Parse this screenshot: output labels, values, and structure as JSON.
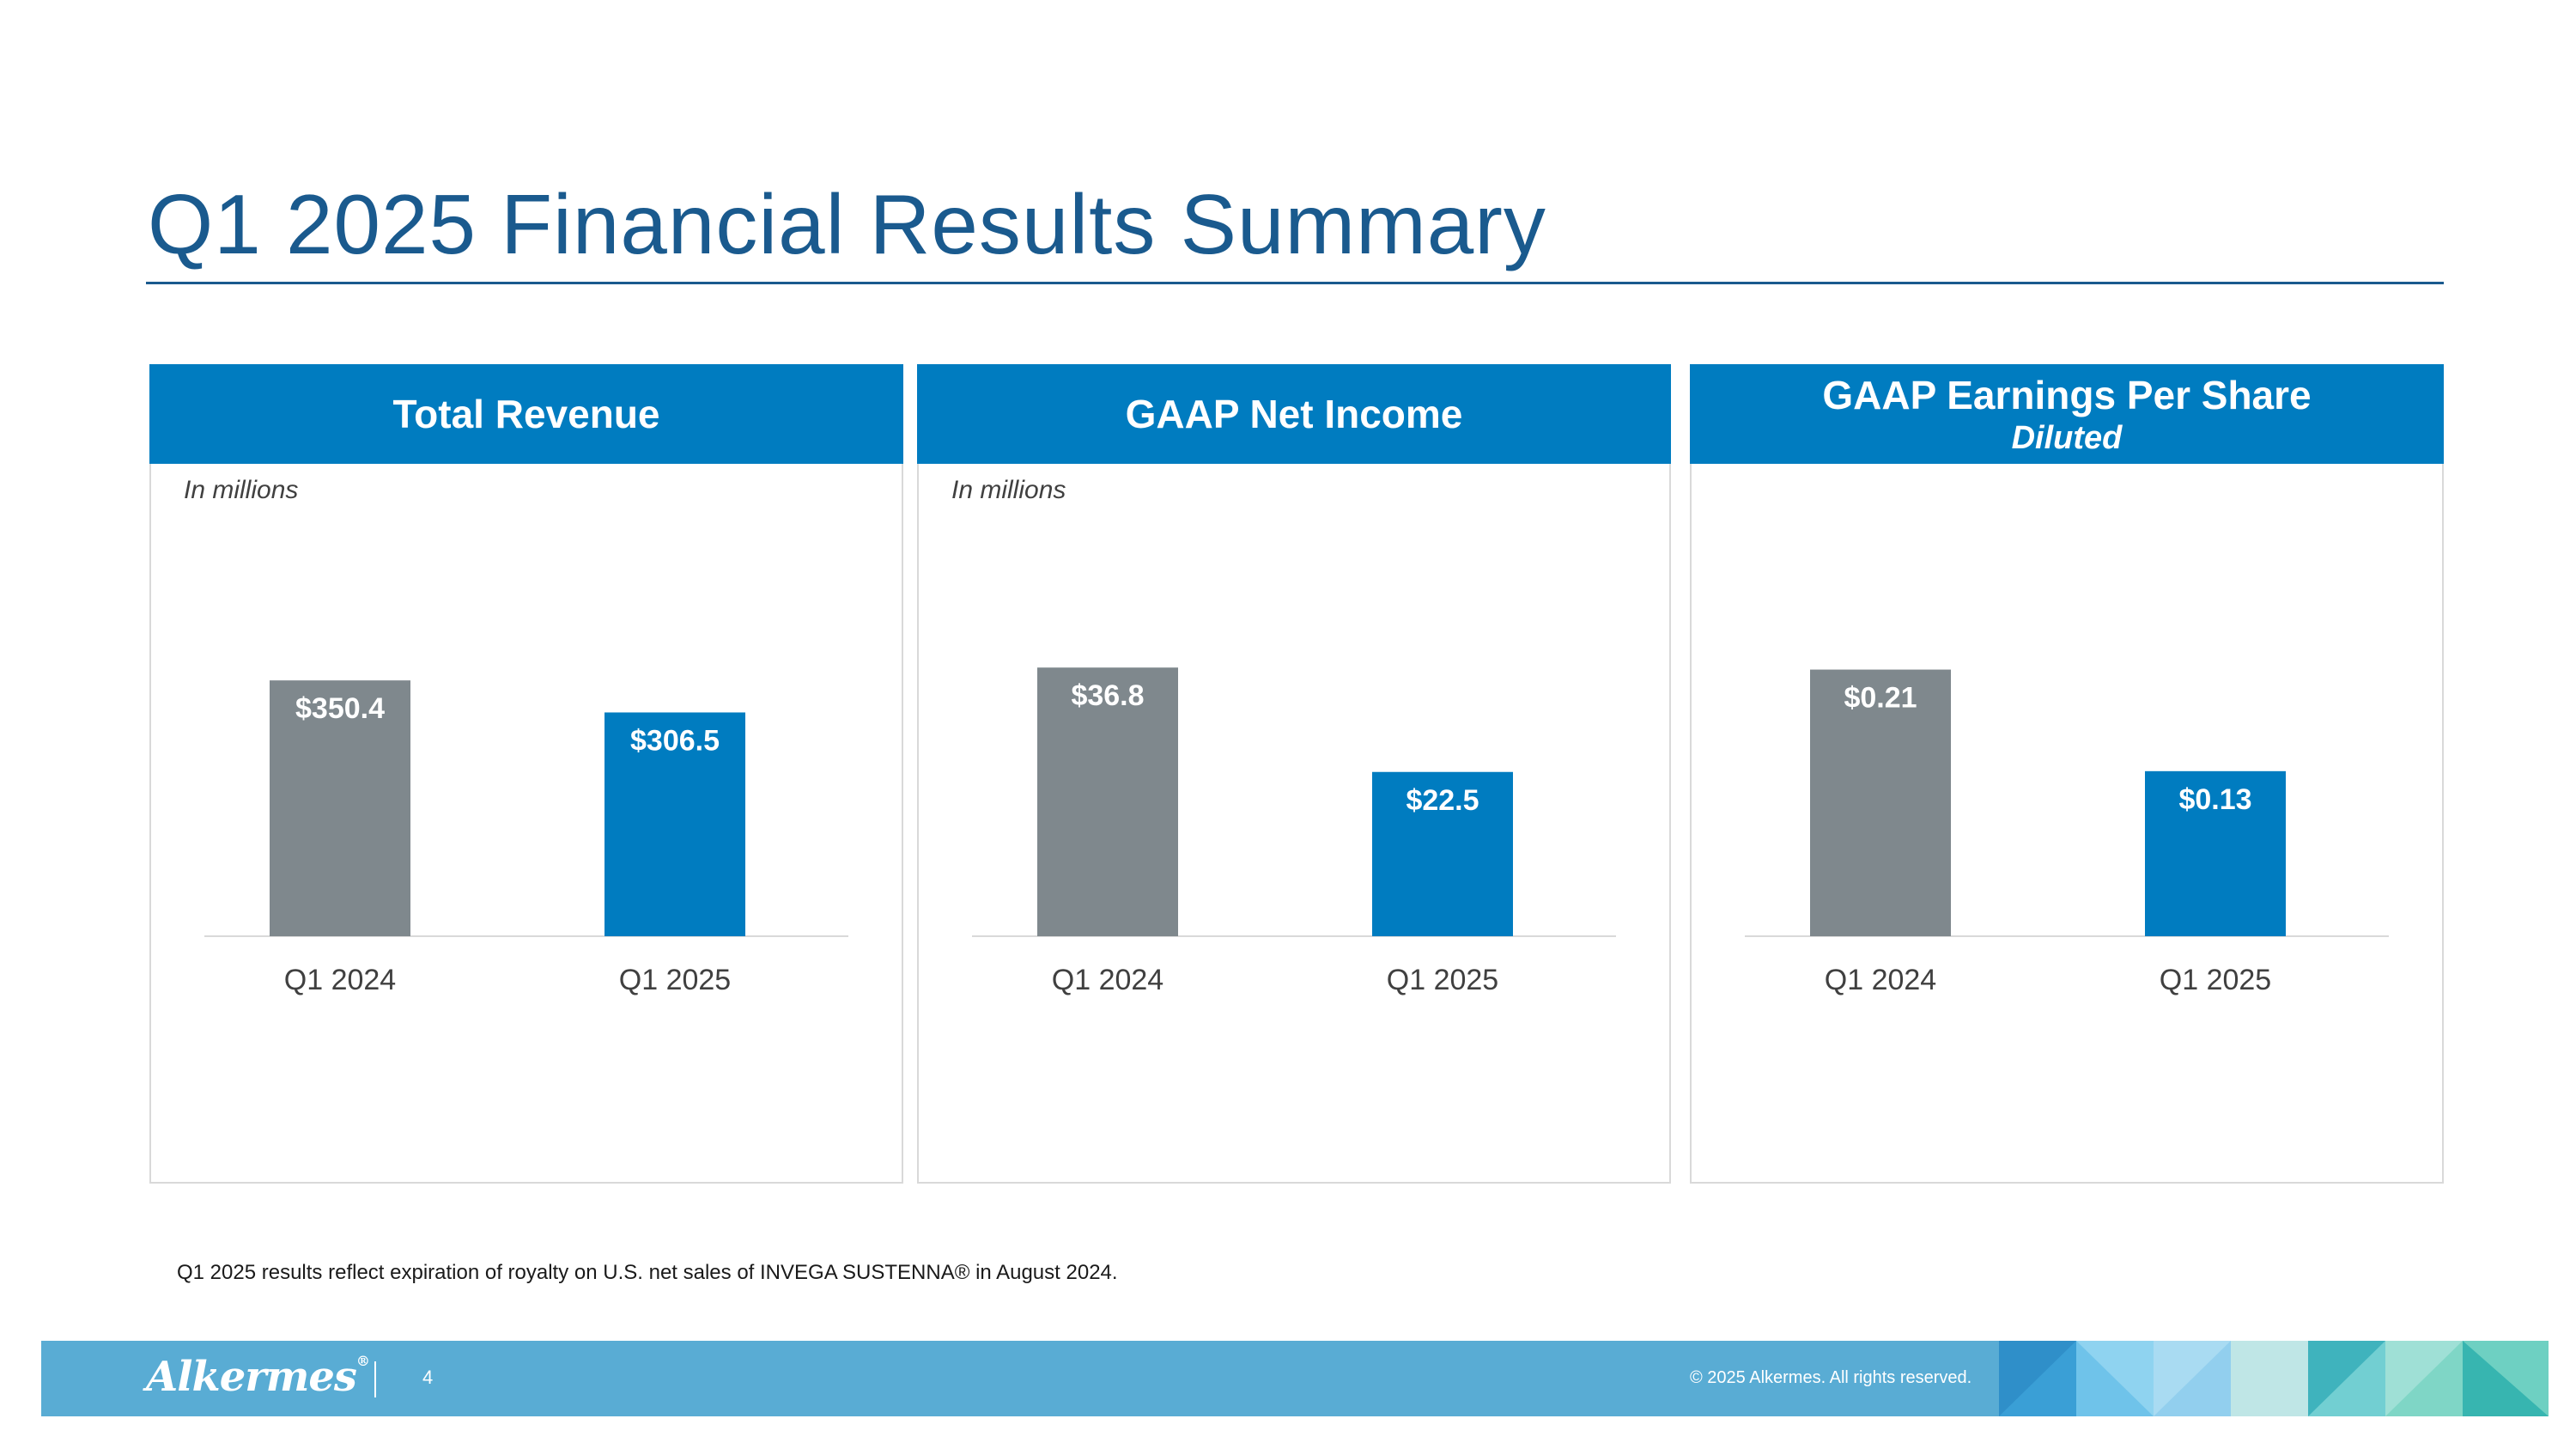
{
  "slide": {
    "title": "Q1 2025 Financial Results Summary",
    "footnote": "Q1 2025 results reflect expiration of royalty on U.S. net sales of INVEGA SUSTENNA® in August 2024."
  },
  "footer": {
    "logo": "Alkermes",
    "logo_mark": "®",
    "page_number": "4",
    "copyright": "© 2025 Alkermes. All rights reserved."
  },
  "colors": {
    "title": "#1a5a8e",
    "panel_header": "#007cc0",
    "bar_prior": "#7f888d",
    "bar_current": "#007cc0",
    "footer_bar": "#59acd4"
  },
  "panels": [
    {
      "title": "Total Revenue",
      "subtitle": "",
      "unit_note": "In millions"
    },
    {
      "title": "GAAP Net Income",
      "subtitle": "",
      "unit_note": "In millions"
    },
    {
      "title": "GAAP Earnings Per Share",
      "subtitle": "Diluted",
      "unit_note": ""
    }
  ],
  "chart_data": [
    {
      "type": "bar",
      "title": "Total Revenue",
      "ylabel": "In millions",
      "categories": [
        "Q1 2024",
        "Q1 2025"
      ],
      "values": [
        350.4,
        306.5
      ],
      "data_labels": [
        "$350.4",
        "$306.5"
      ],
      "ylim": [
        0,
        400
      ],
      "grid": false,
      "legend": "none"
    },
    {
      "type": "bar",
      "title": "GAAP Net Income",
      "ylabel": "In millions",
      "categories": [
        "Q1 2024",
        "Q1 2025"
      ],
      "values": [
        36.8,
        22.5
      ],
      "data_labels": [
        "$36.8",
        "$22.5"
      ],
      "ylim": [
        0,
        40
      ],
      "grid": false,
      "legend": "none"
    },
    {
      "type": "bar",
      "title": "GAAP Earnings Per Share",
      "subtitle": "Diluted",
      "categories": [
        "Q1 2024",
        "Q1 2025"
      ],
      "values": [
        0.21,
        0.13
      ],
      "data_labels": [
        "$0.21",
        "$0.13"
      ],
      "ylim": [
        0,
        0.23
      ],
      "grid": false,
      "legend": "none"
    }
  ]
}
